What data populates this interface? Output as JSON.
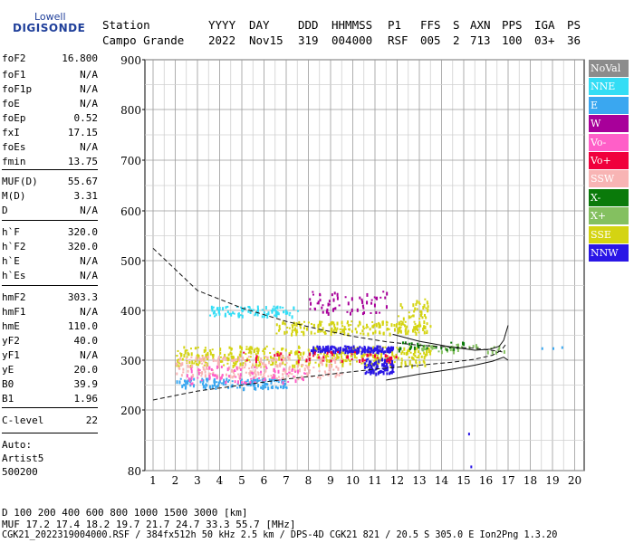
{
  "logo": {
    "line1": "Lowell",
    "line2": "DIGISONDE"
  },
  "header": {
    "labels": [
      "Station",
      "YYYY",
      "DAY",
      "DDD",
      "HHMMSS",
      "P1",
      "FFS",
      "S",
      "AXN",
      "PPS",
      "IGA",
      "PS"
    ],
    "values": [
      "Campo Grande",
      "2022",
      "Nov15",
      "319",
      "004000",
      "RSF",
      "005",
      "2",
      "713",
      "100",
      "03+",
      "36"
    ]
  },
  "params": [
    {
      "label": "foF2",
      "value": "16.800"
    },
    {
      "label": "foF1",
      "value": "N/A"
    },
    {
      "label": "foF1p",
      "value": "N/A"
    },
    {
      "label": "foE",
      "value": "N/A"
    },
    {
      "label": "foEp",
      "value": "0.52"
    },
    {
      "label": "fxI",
      "value": "17.15"
    },
    {
      "label": "foEs",
      "value": "N/A"
    },
    {
      "label": "fmin",
      "value": "13.75"
    },
    {
      "label": "MUF(D)",
      "value": "55.67"
    },
    {
      "label": "M(D)",
      "value": "3.31"
    },
    {
      "label": "D",
      "value": "N/A"
    },
    {
      "label": "h`F",
      "value": "320.0"
    },
    {
      "label": "h`F2",
      "value": "320.0"
    },
    {
      "label": "h`E",
      "value": "N/A"
    },
    {
      "label": "h`Es",
      "value": "N/A"
    },
    {
      "label": "hmF2",
      "value": "303.3"
    },
    {
      "label": "hmF1",
      "value": "N/A"
    },
    {
      "label": "hmE",
      "value": "110.0"
    },
    {
      "label": "yF2",
      "value": "40.0"
    },
    {
      "label": "yF1",
      "value": "N/A"
    },
    {
      "label": "yE",
      "value": "20.0"
    },
    {
      "label": "B0",
      "value": "39.9"
    },
    {
      "label": "B1",
      "value": "1.96"
    },
    {
      "label": "C-level",
      "value": "22"
    }
  ],
  "notes": [
    "Auto:",
    "Artist5",
    "500200"
  ],
  "legend": [
    {
      "label": "NoVal",
      "color": "#8c8c8c"
    },
    {
      "label": "NNE",
      "color": "#33ddf5"
    },
    {
      "label": "E",
      "color": "#3aa7f0"
    },
    {
      "label": "W",
      "color": "#a8009a"
    },
    {
      "label": "Vo-",
      "color": "#ff5fc8"
    },
    {
      "label": "Vo+",
      "color": "#f0003c"
    },
    {
      "label": "SSW",
      "color": "#f8b4b4"
    },
    {
      "label": "X-",
      "color": "#0a7a0a"
    },
    {
      "label": "X+",
      "color": "#84c060"
    },
    {
      "label": "SSE",
      "color": "#d4d412"
    },
    {
      "label": "NNW",
      "color": "#2a16e6"
    }
  ],
  "chart_data": {
    "type": "scatter",
    "x_ticks": [
      1,
      2,
      3,
      4,
      5,
      6,
      7,
      8,
      9,
      10,
      11,
      12,
      13,
      14,
      15,
      16,
      17,
      18,
      19,
      20
    ],
    "y_ticks": [
      80,
      200,
      300,
      400,
      500,
      600,
      700,
      800,
      900
    ],
    "xlim": [
      1,
      20
    ],
    "ylim_left": [
      80,
      900
    ],
    "grid": true,
    "profile_curve": {
      "x": [
        1.0,
        3.0,
        5.0,
        7.0,
        8.5,
        10.0,
        11.5,
        13.0,
        14.5,
        15.5,
        16.2,
        16.6,
        16.8
      ],
      "y": [
        525,
        440,
        405,
        378,
        362,
        348,
        337,
        330,
        326,
        324,
        320,
        318,
        316
      ]
    },
    "trace_lower": {
      "x": [
        1.0,
        3.0,
        5.0,
        7.0,
        9.0,
        11.0,
        13.0,
        14.5,
        15.5,
        16.3,
        16.7,
        16.9
      ],
      "y": [
        220,
        238,
        250,
        262,
        272,
        282,
        290,
        296,
        302,
        310,
        320,
        332
      ]
    },
    "trace_upper": {
      "x": [
        11.8,
        13.0,
        14.5,
        15.5,
        16.2,
        16.6,
        16.8,
        16.9,
        17.0
      ],
      "y": [
        352,
        338,
        326,
        320,
        322,
        328,
        340,
        355,
        370
      ]
    },
    "trace_solid_lower": {
      "x": [
        11.5,
        13.0,
        14.5,
        15.5,
        16.3,
        16.8,
        17.0
      ],
      "y": [
        260,
        272,
        282,
        290,
        298,
        306,
        300
      ]
    },
    "echo_clusters": [
      {
        "color": "#d4d412",
        "x_range": [
          2.0,
          13.5
        ],
        "y_range": [
          290,
          330
        ],
        "count": 420
      },
      {
        "color": "#d4d412",
        "x_range": [
          6.5,
          13.2
        ],
        "y_range": [
          355,
          380
        ],
        "count": 180
      },
      {
        "color": "#d4d412",
        "x_range": [
          12.0,
          13.5
        ],
        "y_range": [
          355,
          425
        ],
        "count": 60
      },
      {
        "color": "#33ddf5",
        "x_range": [
          3.5,
          7.5
        ],
        "y_range": [
          390,
          410
        ],
        "count": 90
      },
      {
        "color": "#3aa7f0",
        "x_range": [
          2.0,
          7.0
        ],
        "y_range": [
          245,
          265
        ],
        "count": 140
      },
      {
        "color": "#f8b4b4",
        "x_range": [
          2.0,
          9.5
        ],
        "y_range": [
          265,
          310
        ],
        "count": 220
      },
      {
        "color": "#2a16e6",
        "x_range": [
          8.0,
          11.8
        ],
        "y_range": [
          318,
          330
        ],
        "count": 160
      },
      {
        "color": "#2a16e6",
        "x_range": [
          10.5,
          11.8
        ],
        "y_range": [
          275,
          305
        ],
        "count": 90
      },
      {
        "color": "#a8009a",
        "x_range": [
          8.0,
          11.5
        ],
        "y_range": [
          395,
          440
        ],
        "count": 60
      },
      {
        "color": "#ff5fc8",
        "x_range": [
          2.5,
          8.0
        ],
        "y_range": [
          255,
          290
        ],
        "count": 80
      },
      {
        "color": "#f0003c",
        "x_range": [
          5.0,
          12.0
        ],
        "y_range": [
          300,
          320
        ],
        "count": 50
      },
      {
        "color": "#84c060",
        "x_range": [
          13.0,
          16.8
        ],
        "y_range": [
          318,
          334
        ],
        "count": 40
      },
      {
        "color": "#0a7a0a",
        "x_range": [
          12.0,
          15.0
        ],
        "y_range": [
          322,
          338
        ],
        "count": 25
      }
    ]
  },
  "footer": {
    "line1": "D      100  200  400  600  800 1000 1500 3000 [km]",
    "line2": "MUF  17.2 17.4 18.2 19.7 21.7 24.7 33.3 55.7 [MHz]",
    "line3": "CGK21_2022319004000.RSF / 384fx512h 50 kHz 2.5 km / DPS-4D CGK21 821 / 20.5 S 305.0 E Ion2Png 1.3.20"
  }
}
